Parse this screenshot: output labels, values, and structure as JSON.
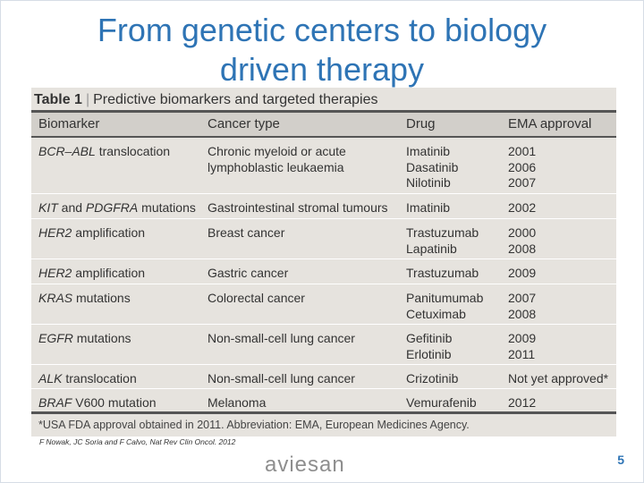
{
  "slide": {
    "title_line1": "From genetic centers to biology",
    "title_line2": "driven therapy",
    "source": "F Nowak, JC Soria and F Calvo, Nat Rev Clin Oncol. 2012",
    "logo_text": "aviesan",
    "page_number": "5"
  },
  "table": {
    "caption_num": "Table 1",
    "caption_sep": "|",
    "caption_text": "Predictive biomarkers and targeted therapies",
    "headers": [
      "Biomarker",
      "Cancer type",
      "Drug",
      "EMA approval"
    ],
    "rows": [
      {
        "biomarker_a": "BCR–ABL",
        "biomarker_b": " translocation",
        "cancer": [
          "Chronic myeloid or acute",
          "lymphoblastic leukaemia"
        ],
        "drug": [
          "Imatinib",
          "Dasatinib",
          "Nilotinib"
        ],
        "approval": [
          "2001",
          "2006",
          "2007"
        ]
      },
      {
        "biomarker_a": "KIT",
        "biomarker_b": " and ",
        "biomarker_c": "PDGFRA",
        "biomarker_d": " mutations",
        "cancer": [
          "Gastrointestinal stromal tumours"
        ],
        "drug": [
          "Imatinib"
        ],
        "approval": [
          "2002"
        ]
      },
      {
        "biomarker_a": "HER2",
        "biomarker_b": " amplification",
        "cancer": [
          "Breast cancer"
        ],
        "drug": [
          "Trastuzumab",
          "Lapatinib"
        ],
        "approval": [
          "2000",
          "2008"
        ]
      },
      {
        "biomarker_a": "HER2",
        "biomarker_b": " amplification",
        "cancer": [
          "Gastric cancer"
        ],
        "drug": [
          "Trastuzumab"
        ],
        "approval": [
          "2009"
        ]
      },
      {
        "biomarker_a": "KRAS",
        "biomarker_b": " mutations",
        "cancer": [
          "Colorectal cancer"
        ],
        "drug": [
          "Panitumumab",
          "Cetuximab"
        ],
        "approval": [
          "2007",
          "2008"
        ]
      },
      {
        "biomarker_a": "EGFR",
        "biomarker_b": " mutations",
        "cancer": [
          "Non-small-cell lung cancer"
        ],
        "drug": [
          "Gefitinib",
          "Erlotinib"
        ],
        "approval": [
          "2009",
          "2011"
        ]
      },
      {
        "biomarker_a": "ALK",
        "biomarker_b": " translocation",
        "cancer": [
          "Non-small-cell lung cancer"
        ],
        "drug": [
          "Crizotinib"
        ],
        "approval": [
          "Not yet approved*"
        ]
      },
      {
        "biomarker_a": "BRAF",
        "biomarker_b": " V600 mutation",
        "cancer": [
          "Melanoma"
        ],
        "drug": [
          "Vemurafenib"
        ],
        "approval": [
          "2012"
        ]
      }
    ],
    "footnote": "*USA FDA approval obtained in 2011. Abbreviation: EMA, European Medicines Agency."
  }
}
